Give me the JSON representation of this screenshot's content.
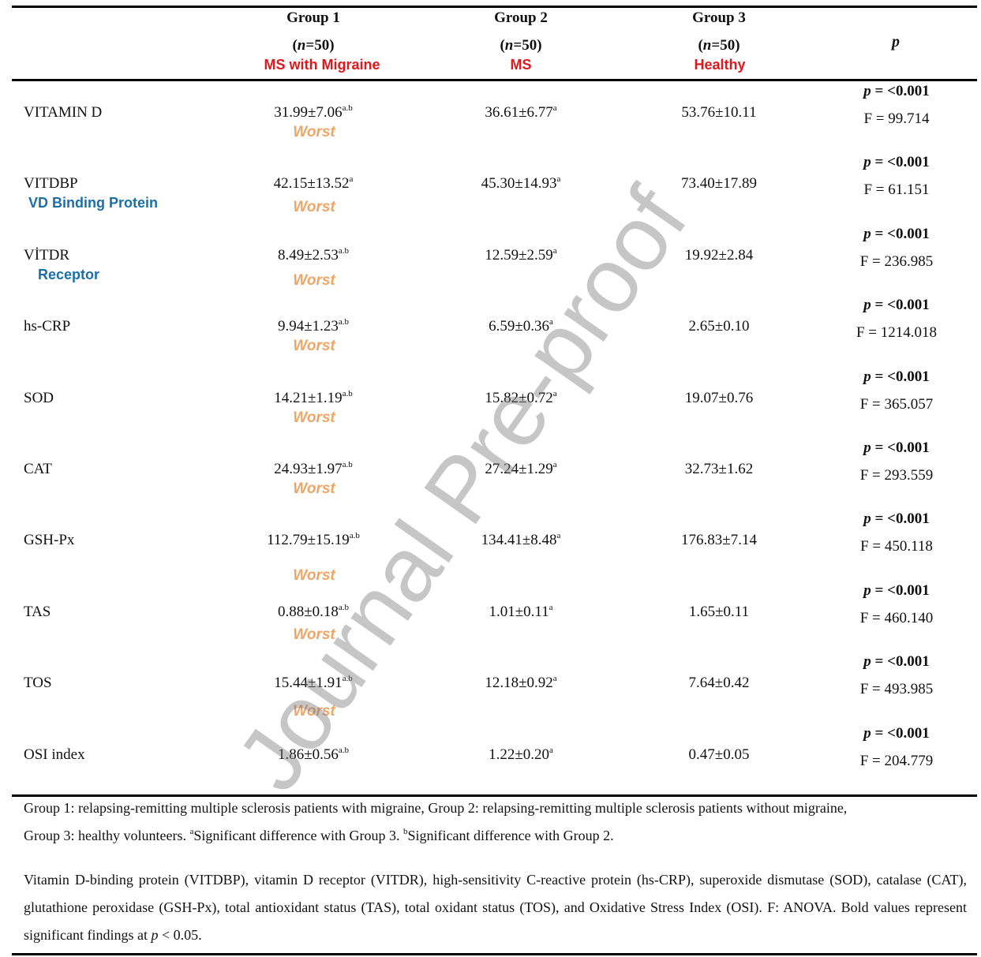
{
  "header": {
    "groups": [
      {
        "name": "Group 1",
        "n": "(n=50)",
        "desc": "MS with Migraine"
      },
      {
        "name": "Group 2",
        "n": "(n=50)",
        "desc": "MS"
      },
      {
        "name": "Group 3",
        "n": "(n=50)",
        "desc": "Healthy"
      }
    ],
    "p_label": "p"
  },
  "rows": [
    {
      "label": "VITAMIN D",
      "sub": "",
      "g1": "31.99±7.06",
      "g1_sup": "a.b",
      "g2": "36.61±6.77",
      "g2_sup": "a",
      "g3": "53.76±10.11",
      "worst": "Worst",
      "p": "p = <0.001",
      "f": "F = 99.714"
    },
    {
      "label": "VITDBP",
      "sub": "VD Binding Protein",
      "g1": "42.15±13.52",
      "g1_sup": "a",
      "g2": "45.30±14.93",
      "g2_sup": "a",
      "g3": "73.40±17.89",
      "worst": "Worst",
      "p": "p = <0.001",
      "f": "F = 61.151"
    },
    {
      "label": "VİTDR",
      "sub": "Receptor",
      "g1": "8.49±2.53",
      "g1_sup": "a.b",
      "g2": "12.59±2.59",
      "g2_sup": "a",
      "g3": "19.92±2.84",
      "worst": "Worst",
      "p": "p = <0.001",
      "f": "F = 236.985"
    },
    {
      "label": "hs-CRP",
      "sub": "",
      "g1": "9.94±1.23",
      "g1_sup": "a.b",
      "g2": "6.59±0.36",
      "g2_sup": "a",
      "g3": "2.65±0.10",
      "worst": "Worst",
      "p": "p = <0.001",
      "f": "F = 1214.018"
    },
    {
      "label": "SOD",
      "sub": "",
      "g1": "14.21±1.19",
      "g1_sup": "a.b",
      "g2": "15.82±0.72",
      "g2_sup": "a",
      "g3": "19.07±0.76",
      "worst": "Worst",
      "p": "p = <0.001",
      "f": "F = 365.057"
    },
    {
      "label": "CAT",
      "sub": "",
      "g1": "24.93±1.97",
      "g1_sup": "a.b",
      "g2": "27.24±1.29",
      "g2_sup": "a",
      "g3": "32.73±1.62",
      "worst": "Worst",
      "p": "p =  <0.001",
      "f": "F = 293.559"
    },
    {
      "label": "GSH-Px",
      "sub": "",
      "g1": "112.79±15.19",
      "g1_sup": "a.b",
      "g2": "134.41±8.48",
      "g2_sup": "a",
      "g3": "176.83±7.14",
      "worst": "Worst",
      "p": "p = <0.001",
      "f": "F = 450.118"
    },
    {
      "label": "TAS",
      "sub": "",
      "g1": "0.88±0.18",
      "g1_sup": "a.b",
      "g2": "1.01±0.11",
      "g2_sup": "a",
      "g3": "1.65±0.11",
      "worst": "Worst",
      "p": "p = <0.001",
      "f": "F = 460.140"
    },
    {
      "label": "TOS",
      "sub": "",
      "g1": "15.44±1.91",
      "g1_sup": "a.b",
      "g2": "12.18±0.92",
      "g2_sup": "a",
      "g3": "7.64±0.42",
      "worst": "Worst",
      "p": "p = <0.001",
      "f": "F = 493.985"
    },
    {
      "label": "OSI index",
      "sub": "",
      "g1": "1.86±0.56",
      "g1_sup": "a.b",
      "g2": "1.22±0.20",
      "g2_sup": "a",
      "g3": "0.47±0.05",
      "worst": "",
      "p": "p = <0.001",
      "f": "F = 204.779"
    }
  ],
  "footnotes": {
    "line1": "Group 1: relapsing-remitting multiple sclerosis patients with migraine, Group 2: relapsing-remitting multiple sclerosis patients without migraine,",
    "line2_pre": "Group 3: healthy volunteers. ",
    "sup_a": "a",
    "line2_a": "Significant difference with Group 3. ",
    "sup_b": "b",
    "line2_b": "Significant difference with Group 2.",
    "abbrev": "Vitamin D-binding protein (VITDBP), vitamin D receptor (VITDR), high-sensitivity C-reactive protein (hs-CRP), superoxide dismutase (SOD), catalase (CAT), glutathione peroxidase (GSH-Px), total antioxidant status (TAS), total oxidant status (TOS), and Oxidative Stress Index (OSI). F: ANOVA. Bold values represent significant findings at p < 0.05."
  },
  "watermark": "Journal Pre-proof"
}
